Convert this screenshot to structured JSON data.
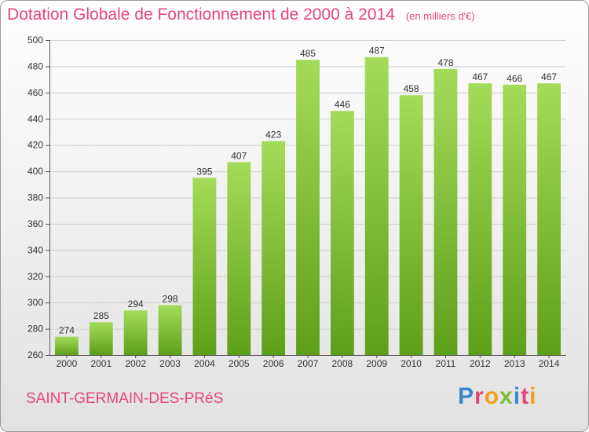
{
  "chart_data": {
    "type": "bar",
    "title": "Dotation Globale de Fonctionnement de 2000 à 2014",
    "subtitle": "(en milliers d'€)",
    "categories": [
      "2000",
      "2001",
      "2002",
      "2003",
      "2004",
      "2005",
      "2006",
      "2007",
      "2008",
      "2009",
      "2010",
      "2011",
      "2012",
      "2013",
      "2014"
    ],
    "values": [
      274,
      285,
      294,
      298,
      395,
      407,
      423,
      485,
      446,
      487,
      458,
      478,
      467,
      466,
      467
    ],
    "ylim": [
      260,
      500
    ],
    "yticks": [
      260,
      280,
      300,
      320,
      340,
      360,
      380,
      400,
      420,
      440,
      460,
      480,
      500
    ],
    "xlabel": "",
    "ylabel": "",
    "grid": true,
    "colors": {
      "bar_top": "#a4dc5a",
      "bar_bottom": "#5e9f1a",
      "title": "#e8457a"
    }
  },
  "footer": {
    "commune": "SAINT-GERMAIN-DES-PRéS",
    "logo_text": "Proxiti",
    "logo_colors": [
      "#3a86c8",
      "#e8457a",
      "#f29f1b",
      "#7cbf3a",
      "#3a86c8",
      "#e8457a",
      "#f29f1b"
    ]
  }
}
